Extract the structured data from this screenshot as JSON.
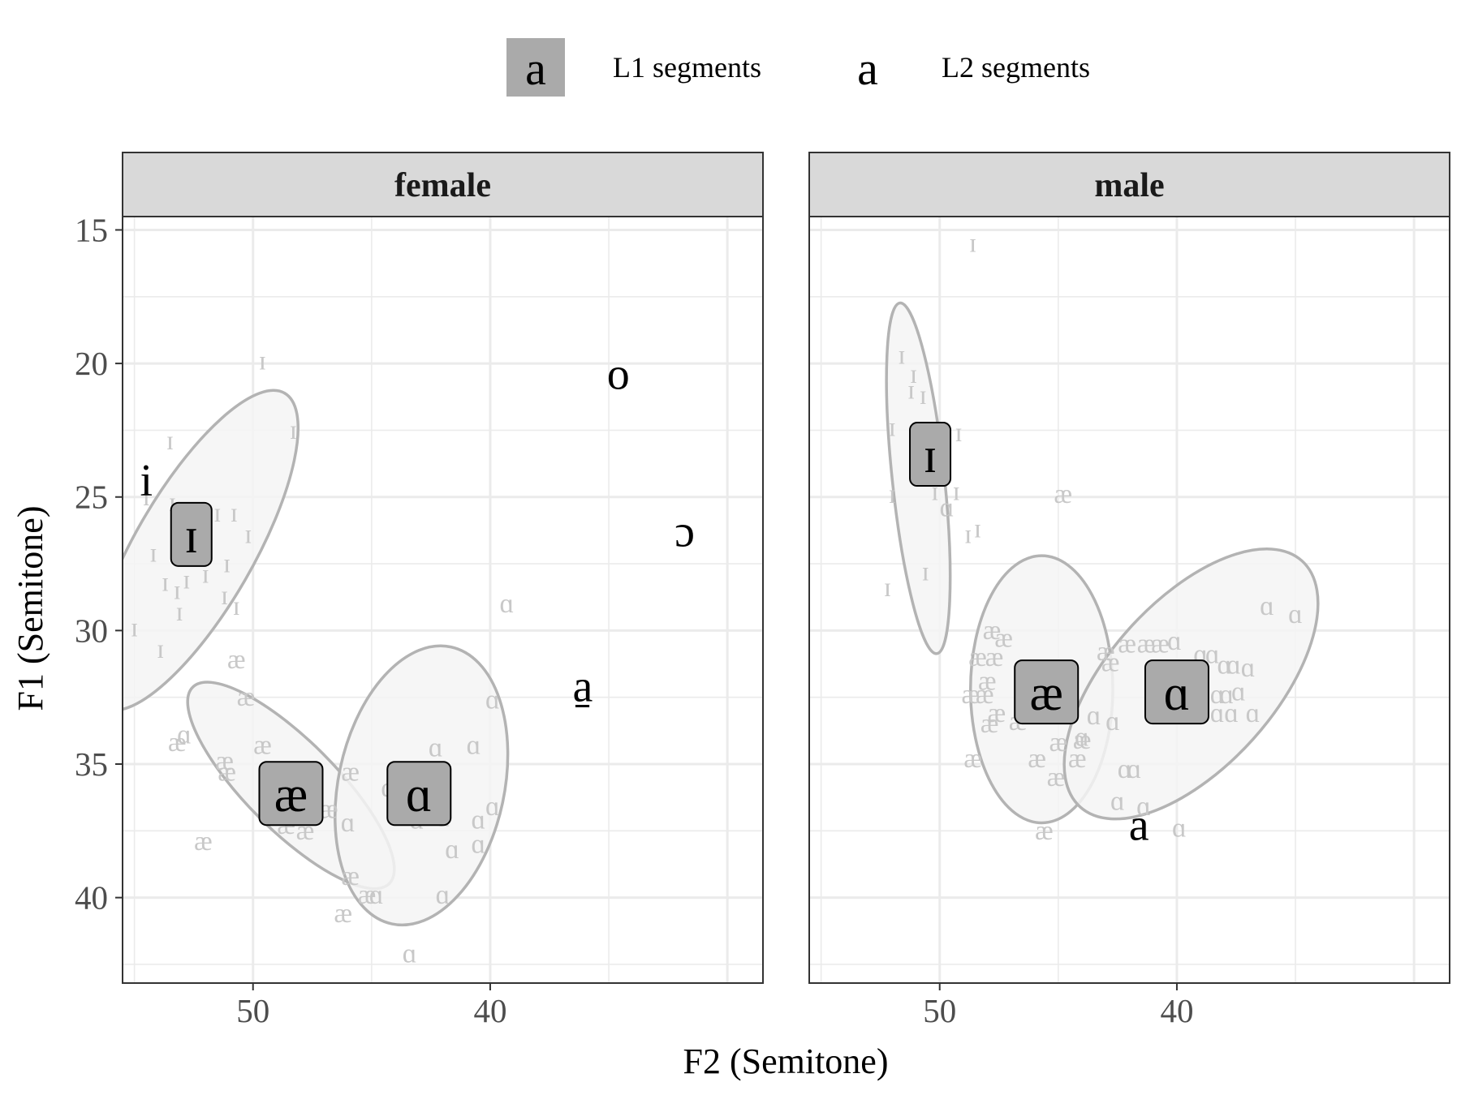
{
  "chart_data": {
    "type": "scatter",
    "legend": {
      "position": "top",
      "items": [
        {
          "glyph": "a",
          "label": "L1 segments",
          "fill": "#aaaaaa"
        },
        {
          "glyph": "a",
          "label": "L2 segments",
          "fill": "none"
        }
      ]
    },
    "xlabel": "F2 (Semitone)",
    "ylabel": "F1 (Semitone)",
    "x_reversed": true,
    "y_reversed": true,
    "xlim": [
      55.5,
      28.5
    ],
    "ylim": [
      14.5,
      43.2
    ],
    "x_ticks": [
      50,
      40
    ],
    "y_ticks": [
      15,
      20,
      25,
      30,
      35,
      40
    ],
    "grid": true,
    "colors": {
      "l2_points": "#c8c8c8",
      "ellipse_fill": "#f4f4f4",
      "ellipse_stroke": "#b3b3b3",
      "l1_box_fill": "#aaaaaa",
      "strip_fill": "#d9d9d9",
      "grid": "#ebebeb"
    },
    "panels": [
      {
        "strip": "female",
        "l1_vowels": [
          {
            "label": "ɪ",
            "x": 52.6,
            "y": 26.4
          },
          {
            "label": "æ",
            "x": 48.4,
            "y": 36.1
          },
          {
            "label": "ɑ",
            "x": 43.0,
            "y": 36.1
          }
        ],
        "ellipses": [
          {
            "vowel": "ɪ",
            "cx": 52.5,
            "cy": 27.0,
            "rx": 2.5,
            "ry": 6.8,
            "angle": 30
          },
          {
            "vowel": "æ",
            "cx": 48.4,
            "cy": 35.8,
            "rx": 1.9,
            "ry": 5.2,
            "angle": -45
          },
          {
            "vowel": "ɑ",
            "cx": 42.9,
            "cy": 35.8,
            "rx": 3.5,
            "ry": 5.3,
            "angle": 12
          }
        ],
        "l2_vowels": [
          {
            "label": "i",
            "x": 54.5,
            "y": 24.4
          },
          {
            "label": "o",
            "x": 34.6,
            "y": 20.4
          },
          {
            "label": "ɔ",
            "x": 31.8,
            "y": 26.3
          },
          {
            "label": "a̠",
            "x": 36.1,
            "y": 32.1
          }
        ],
        "l2_tokens": [
          {
            "v": "ɪ",
            "x": 49.6,
            "y": 19.9
          },
          {
            "v": "ɪ",
            "x": 48.3,
            "y": 22.5
          },
          {
            "v": "ɪ",
            "x": 53.5,
            "y": 22.9
          },
          {
            "v": "ɪ",
            "x": 56.4,
            "y": 24.8
          },
          {
            "v": "ɪ",
            "x": 55.9,
            "y": 25.2
          },
          {
            "v": "ɪ",
            "x": 54.5,
            "y": 25.0
          },
          {
            "v": "ɪ",
            "x": 53.4,
            "y": 25.2
          },
          {
            "v": "ɪ",
            "x": 51.5,
            "y": 25.6
          },
          {
            "v": "ɪ",
            "x": 50.8,
            "y": 25.6
          },
          {
            "v": "ɪ",
            "x": 50.2,
            "y": 26.4
          },
          {
            "v": "ɪ",
            "x": 54.2,
            "y": 27.1
          },
          {
            "v": "ɪ",
            "x": 51.1,
            "y": 27.5
          },
          {
            "v": "ɪ",
            "x": 53.7,
            "y": 28.2
          },
          {
            "v": "ɪ",
            "x": 53.2,
            "y": 28.5
          },
          {
            "v": "ɪ",
            "x": 52.8,
            "y": 28.1
          },
          {
            "v": "ɪ",
            "x": 52.0,
            "y": 27.9
          },
          {
            "v": "ɪ",
            "x": 51.2,
            "y": 28.7
          },
          {
            "v": "ɪ",
            "x": 50.7,
            "y": 29.1
          },
          {
            "v": "ɪ",
            "x": 53.1,
            "y": 29.3
          },
          {
            "v": "ɪ",
            "x": 55.0,
            "y": 29.9
          },
          {
            "v": "ɪ",
            "x": 53.9,
            "y": 30.7
          },
          {
            "v": "æ",
            "x": 50.7,
            "y": 31.1
          },
          {
            "v": "æ",
            "x": 50.3,
            "y": 32.5
          },
          {
            "v": "æ",
            "x": 53.2,
            "y": 34.2
          },
          {
            "v": "æ",
            "x": 51.2,
            "y": 34.9
          },
          {
            "v": "æ",
            "x": 51.1,
            "y": 35.3
          },
          {
            "v": "æ",
            "x": 49.6,
            "y": 34.3
          },
          {
            "v": "æ",
            "x": 48.8,
            "y": 35.1
          },
          {
            "v": "æ",
            "x": 48.0,
            "y": 35.7
          },
          {
            "v": "æ",
            "x": 49.2,
            "y": 36.4
          },
          {
            "v": "æ",
            "x": 48.6,
            "y": 37.3
          },
          {
            "v": "æ",
            "x": 47.8,
            "y": 37.5
          },
          {
            "v": "æ",
            "x": 46.8,
            "y": 36.7
          },
          {
            "v": "æ",
            "x": 45.9,
            "y": 35.3
          },
          {
            "v": "æ",
            "x": 52.1,
            "y": 37.9
          },
          {
            "v": "æ",
            "x": 45.9,
            "y": 39.2
          },
          {
            "v": "æ",
            "x": 45.2,
            "y": 39.9
          },
          {
            "v": "æ",
            "x": 46.2,
            "y": 40.6
          },
          {
            "v": "ɑ",
            "x": 52.9,
            "y": 33.9
          },
          {
            "v": "ɑ",
            "x": 44.3,
            "y": 35.9
          },
          {
            "v": "ɑ",
            "x": 42.3,
            "y": 34.4
          },
          {
            "v": "ɑ",
            "x": 40.7,
            "y": 34.3
          },
          {
            "v": "ɑ",
            "x": 43.1,
            "y": 37.1
          },
          {
            "v": "ɑ",
            "x": 42.0,
            "y": 37.0
          },
          {
            "v": "ɑ",
            "x": 40.5,
            "y": 37.1
          },
          {
            "v": "ɑ",
            "x": 39.9,
            "y": 36.6
          },
          {
            "v": "ɑ",
            "x": 41.6,
            "y": 38.2
          },
          {
            "v": "ɑ",
            "x": 40.5,
            "y": 38.0
          },
          {
            "v": "ɑ",
            "x": 46.0,
            "y": 37.2
          },
          {
            "v": "ɑ",
            "x": 42.0,
            "y": 39.9
          },
          {
            "v": "ɑ",
            "x": 44.8,
            "y": 39.9
          },
          {
            "v": "ɑ",
            "x": 43.4,
            "y": 42.1
          },
          {
            "v": "ɑ",
            "x": 39.9,
            "y": 32.6
          },
          {
            "v": "ɑ",
            "x": 39.3,
            "y": 29.0
          }
        ]
      },
      {
        "strip": "male",
        "l1_vowels": [
          {
            "label": "ɪ",
            "x": 50.4,
            "y": 23.4
          },
          {
            "label": "æ",
            "x": 45.5,
            "y": 32.3
          },
          {
            "label": "ɑ",
            "x": 40.0,
            "y": 32.3
          }
        ],
        "ellipses": [
          {
            "vowel": "ɪ",
            "cx": 50.9,
            "cy": 24.3,
            "rx": 1.1,
            "ry": 6.6,
            "angle": -6
          },
          {
            "vowel": "æ",
            "cx": 45.7,
            "cy": 32.2,
            "rx": 3.0,
            "ry": 5.0,
            "angle": 0
          },
          {
            "vowel": "ɑ",
            "cx": 39.4,
            "cy": 32.0,
            "rx": 3.5,
            "ry": 6.2,
            "angle": 42
          }
        ],
        "l2_vowels": [
          {
            "label": "a",
            "x": 41.6,
            "y": 37.3
          }
        ],
        "l2_tokens": [
          {
            "v": "ɪ",
            "x": 48.6,
            "y": 15.5
          },
          {
            "v": "ɪ",
            "x": 51.6,
            "y": 19.7
          },
          {
            "v": "ɪ",
            "x": 51.1,
            "y": 20.4
          },
          {
            "v": "ɪ",
            "x": 51.2,
            "y": 21.0
          },
          {
            "v": "ɪ",
            "x": 50.7,
            "y": 21.2
          },
          {
            "v": "ɪ",
            "x": 52.0,
            "y": 22.4
          },
          {
            "v": "ɪ",
            "x": 49.2,
            "y": 22.6
          },
          {
            "v": "ɪ",
            "x": 52.0,
            "y": 24.9
          },
          {
            "v": "ɪ",
            "x": 50.2,
            "y": 24.8
          },
          {
            "v": "ɪ",
            "x": 49.3,
            "y": 24.8
          },
          {
            "v": "ɪ",
            "x": 48.8,
            "y": 26.4
          },
          {
            "v": "ɪ",
            "x": 48.4,
            "y": 26.2
          },
          {
            "v": "ɪ",
            "x": 50.6,
            "y": 27.8
          },
          {
            "v": "ɪ",
            "x": 52.2,
            "y": 28.4
          },
          {
            "v": "æ",
            "x": 44.8,
            "y": 24.9
          },
          {
            "v": "ɑ",
            "x": 49.7,
            "y": 25.4
          },
          {
            "v": "æ",
            "x": 47.8,
            "y": 30.0
          },
          {
            "v": "æ",
            "x": 47.3,
            "y": 30.3
          },
          {
            "v": "æ",
            "x": 47.7,
            "y": 31.0
          },
          {
            "v": "æ",
            "x": 48.4,
            "y": 31.0
          },
          {
            "v": "æ",
            "x": 48.0,
            "y": 31.9
          },
          {
            "v": "æ",
            "x": 48.7,
            "y": 32.4
          },
          {
            "v": "æ",
            "x": 48.1,
            "y": 32.4
          },
          {
            "v": "æ",
            "x": 47.6,
            "y": 33.1
          },
          {
            "v": "æ",
            "x": 46.7,
            "y": 33.4
          },
          {
            "v": "æ",
            "x": 45.1,
            "y": 33.1
          },
          {
            "v": "æ",
            "x": 47.9,
            "y": 33.5
          },
          {
            "v": "æ",
            "x": 45.0,
            "y": 34.2
          },
          {
            "v": "æ",
            "x": 44.0,
            "y": 34.1
          },
          {
            "v": "æ",
            "x": 44.2,
            "y": 34.8
          },
          {
            "v": "æ",
            "x": 45.9,
            "y": 34.8
          },
          {
            "v": "æ",
            "x": 48.6,
            "y": 34.8
          },
          {
            "v": "æ",
            "x": 45.1,
            "y": 35.5
          },
          {
            "v": "æ",
            "x": 45.6,
            "y": 37.5
          },
          {
            "v": "æ",
            "x": 42.1,
            "y": 30.5
          },
          {
            "v": "æ",
            "x": 41.3,
            "y": 30.5
          },
          {
            "v": "æ",
            "x": 40.7,
            "y": 30.5
          },
          {
            "v": "æ",
            "x": 43.0,
            "y": 30.8
          },
          {
            "v": "æ",
            "x": 42.8,
            "y": 31.2
          },
          {
            "v": "ɑ",
            "x": 44.0,
            "y": 34.0
          },
          {
            "v": "ɑ",
            "x": 43.5,
            "y": 33.2
          },
          {
            "v": "ɑ",
            "x": 42.7,
            "y": 33.4
          },
          {
            "v": "ɑ",
            "x": 40.1,
            "y": 30.4
          },
          {
            "v": "ɑ",
            "x": 39.0,
            "y": 30.9
          },
          {
            "v": "ɑ",
            "x": 38.5,
            "y": 30.9
          },
          {
            "v": "ɑ",
            "x": 38.0,
            "y": 31.3
          },
          {
            "v": "ɑ",
            "x": 37.6,
            "y": 31.3
          },
          {
            "v": "ɑ",
            "x": 37.0,
            "y": 31.4
          },
          {
            "v": "ɑ",
            "x": 38.3,
            "y": 32.4
          },
          {
            "v": "ɑ",
            "x": 37.9,
            "y": 32.4
          },
          {
            "v": "ɑ",
            "x": 37.4,
            "y": 32.3
          },
          {
            "v": "ɑ",
            "x": 38.3,
            "y": 33.1
          },
          {
            "v": "ɑ",
            "x": 37.7,
            "y": 33.1
          },
          {
            "v": "ɑ",
            "x": 36.8,
            "y": 33.1
          },
          {
            "v": "ɑ",
            "x": 36.2,
            "y": 29.1
          },
          {
            "v": "ɑ",
            "x": 35.0,
            "y": 29.4
          },
          {
            "v": "ɑ",
            "x": 42.2,
            "y": 35.2
          },
          {
            "v": "ɑ",
            "x": 41.8,
            "y": 35.2
          },
          {
            "v": "ɑ",
            "x": 39.9,
            "y": 37.4
          },
          {
            "v": "ɑ",
            "x": 41.4,
            "y": 36.6
          },
          {
            "v": "ɑ",
            "x": 42.5,
            "y": 36.4
          }
        ]
      }
    ]
  }
}
